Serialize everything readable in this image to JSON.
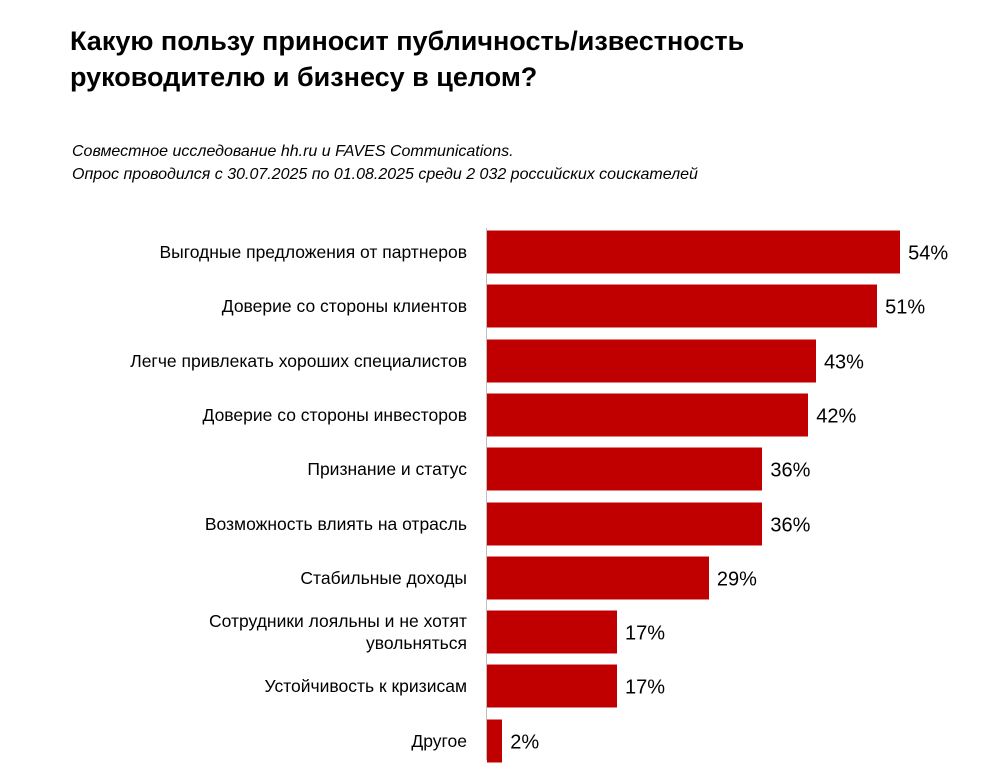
{
  "chart_data": {
    "type": "bar",
    "orientation": "horizontal",
    "title": [
      "Какую пользу приносит публичность/известность",
      "руководителю и бизнесу в целом?"
    ],
    "subtitle": [
      "Совместное исследование hh.ru и FAVES Communications.",
      "Опрос проводился с 30.07.2025 по 01.08.2025 среди 2 032 российских соискателей"
    ],
    "categories": [
      "Выгодные предложения  от партнеров",
      "Доверие со стороны клиентов",
      "Легче привлекать хороших  специалистов",
      "Доверие со стороны инвесторов",
      "Признание  и статус",
      "Возможность влиять на отрасль",
      "Стабильные доходы",
      "Сотрудники лояльны  и не хотят\nувольняться",
      "Устойчивость к кризисам",
      "Другое"
    ],
    "values": [
      54,
      51,
      43,
      42,
      36,
      36,
      29,
      17,
      17,
      2
    ],
    "value_labels": [
      "54%",
      "51%",
      "43%",
      "42%",
      "36%",
      "36%",
      "29%",
      "17%",
      "17%",
      "2%"
    ],
    "color": "#c00000"
  }
}
